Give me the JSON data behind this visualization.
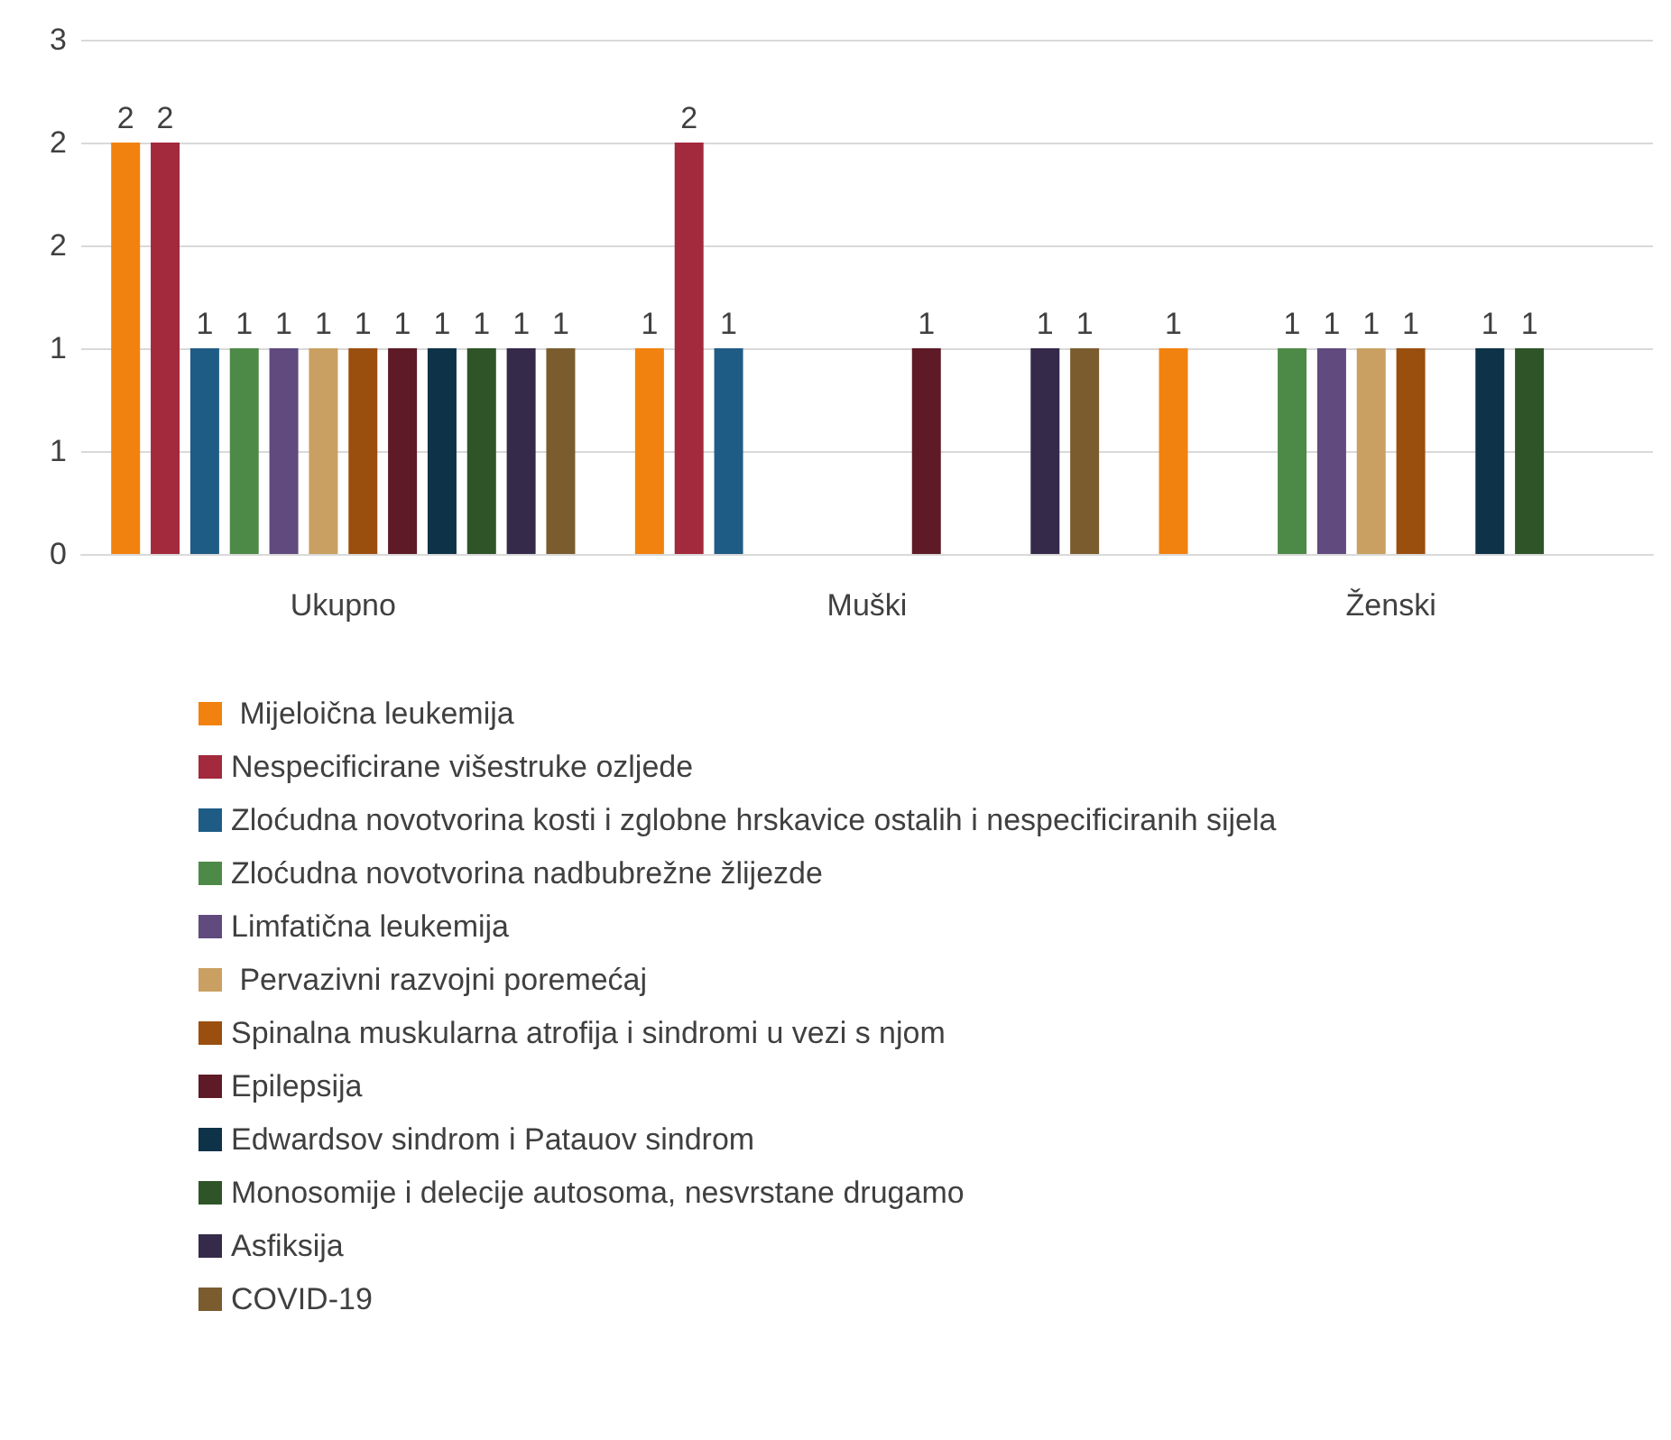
{
  "chart_data": {
    "type": "bar",
    "categories": [
      "Ukupno",
      "Muški",
      "Ženski"
    ],
    "ylim": [
      0,
      2.5
    ],
    "yticks": [
      0,
      {
        "value": 0.5,
        "label": "1"
      },
      1,
      {
        "value": 1.5,
        "label": "2"
      },
      2,
      {
        "value": 2.5,
        "label": "3"
      }
    ],
    "grid": "y",
    "legend": "bottom",
    "data_labels": true,
    "series": [
      {
        "name": " Mijeloična leukemija",
        "color": "#f2820f",
        "values": [
          2,
          1,
          1
        ]
      },
      {
        "name": "Nespecificirane višestruke ozljede",
        "color": "#a3293c",
        "values": [
          2,
          2,
          null
        ]
      },
      {
        "name": "Zloćudna novotvorina kosti i zglobne hrskavice ostalih i nespecificiranih sijela",
        "color": "#1f5c85",
        "values": [
          1,
          1,
          null
        ]
      },
      {
        "name": "Zloćudna novotvorina nadbubrežne žlijezde",
        "color": "#4e8a47",
        "values": [
          1,
          null,
          1
        ]
      },
      {
        "name": "Limfatična leukemija",
        "color": "#604a7e",
        "values": [
          1,
          null,
          1
        ]
      },
      {
        "name": " Pervazivni razvojni poremećaj",
        "color": "#c9a062",
        "values": [
          1,
          null,
          1
        ]
      },
      {
        "name": "Spinalna muskularna atrofija i sindromi u vezi s njom",
        "color": "#9a4f0f",
        "values": [
          1,
          null,
          1
        ]
      },
      {
        "name": "Epilepsija",
        "color": "#5e1a26",
        "values": [
          1,
          1,
          null
        ]
      },
      {
        "name": "Edwardsov sindrom i Patauov sindrom",
        "color": "#0e3248",
        "values": [
          1,
          null,
          1
        ]
      },
      {
        "name": "Monosomije i delecije autosoma, nesvrstane drugamo",
        "color": "#2f5428",
        "values": [
          1,
          null,
          1
        ]
      },
      {
        "name": "Asfiksija",
        "color": "#352a4a",
        "values": [
          1,
          1,
          null
        ]
      },
      {
        "name": "COVID-19",
        "color": "#7a5c2e",
        "values": [
          1,
          1,
          null
        ]
      }
    ]
  }
}
